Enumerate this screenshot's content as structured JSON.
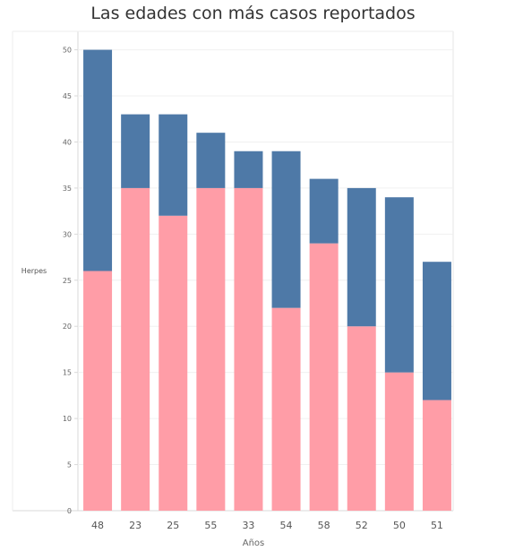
{
  "chart_data": {
    "type": "bar",
    "stacked": true,
    "title": "Las edades con más casos reportados",
    "xlabel": "Años",
    "ylabel": "Herpes",
    "categories": [
      "48",
      "23",
      "25",
      "55",
      "33",
      "54",
      "58",
      "52",
      "50",
      "51"
    ],
    "series": [
      {
        "values": [
          26,
          35,
          32,
          35,
          35,
          22,
          29,
          20,
          15,
          12
        ],
        "color": "#ff9da7"
      },
      {
        "values": [
          24,
          8,
          11,
          6,
          4,
          17,
          7,
          15,
          19,
          15
        ],
        "color": "#4e79a7"
      }
    ],
    "totals": [
      50,
      43,
      43,
      41,
      39,
      39,
      36,
      35,
      34,
      27
    ],
    "ylim": [
      0,
      52
    ],
    "yticks": [
      0,
      5,
      10,
      15,
      20,
      25,
      30,
      35,
      40,
      45,
      50
    ],
    "grid": true,
    "legend": "none"
  }
}
